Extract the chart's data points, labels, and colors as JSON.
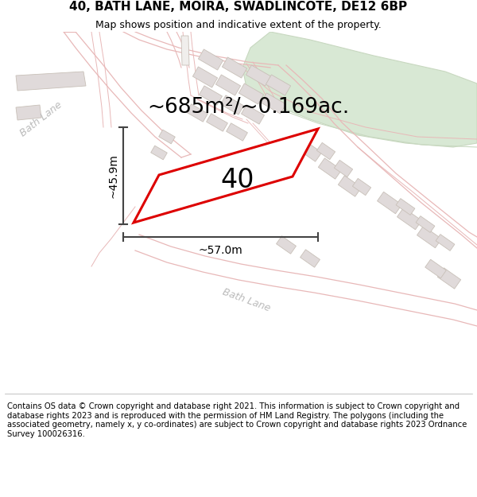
{
  "title": "40, BATH LANE, MOIRA, SWADLINCOTE, DE12 6BP",
  "subtitle": "Map shows position and indicative extent of the property.",
  "area_text": "~685m²/~0.169ac.",
  "dim_height": "~45.9m",
  "dim_width": "~57.0m",
  "property_number": "40",
  "footer": "Contains OS data © Crown copyright and database right 2021. This information is subject to Crown copyright and database rights 2023 and is reproduced with the permission of HM Land Registry. The polygons (including the associated geometry, namely x, y co-ordinates) are subject to Crown copyright and database rights 2023 Ordnance Survey 100026316.",
  "background_color": "#ffffff",
  "map_bg": "#ffffff",
  "road_stroke": "#e8b8b8",
  "road_fill": "#f9f0f0",
  "building_fill": "#e0dada",
  "building_edge": "#c8c0b8",
  "green_fill": "#d8e8d4",
  "green_edge": "#c8d8c0",
  "property_fill": "#ffffff",
  "property_edge": "#dd0000",
  "dim_color": "#444444",
  "label_color": "#bbbbbb",
  "title_fontsize": 11,
  "subtitle_fontsize": 9,
  "area_fontsize": 19,
  "dim_fontsize": 10,
  "number_fontsize": 24,
  "footer_fontsize": 7.2
}
